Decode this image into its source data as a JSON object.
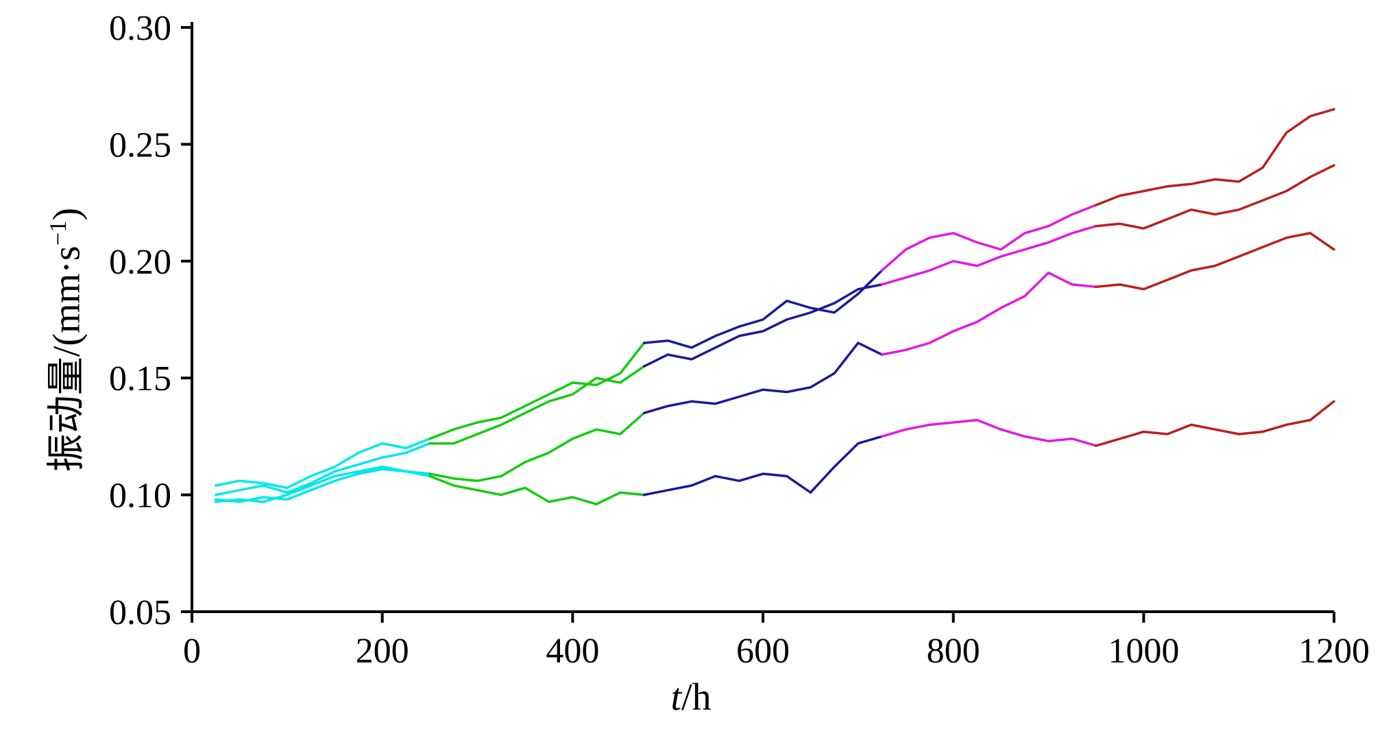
{
  "labels": {
    "ylabel_main": "振动量/(mm·s",
    "ylabel_sup": "−1",
    "ylabel_close": ")",
    "xlabel_var": "t",
    "xlabel_rest": "/h"
  },
  "chart_data": {
    "type": "line",
    "title": "",
    "xlabel": "t/h",
    "ylabel": "振动量/(mm·s⁻¹)",
    "xlim": [
      0,
      1200
    ],
    "ylim": [
      0.05,
      0.3
    ],
    "xticks": [
      0,
      200,
      400,
      600,
      800,
      1000,
      1200
    ],
    "yticks": [
      0.05,
      0.1,
      0.15,
      0.2,
      0.25,
      0.3
    ],
    "grid": false,
    "legend": "none",
    "axis_color": "#000000",
    "color_segments": [
      {
        "name": "cyan-stage",
        "t_max": 250,
        "color": "#00E8E8"
      },
      {
        "name": "green-stage",
        "t_max": 480,
        "color": "#12CC12"
      },
      {
        "name": "blue-stage",
        "t_max": 720,
        "color": "#1A1A99"
      },
      {
        "name": "magenta-stage",
        "t_max": 950,
        "color": "#E318E3"
      },
      {
        "name": "red-stage",
        "t_max": 1200,
        "color": "#BC1E1E"
      }
    ],
    "x": [
      25,
      50,
      75,
      100,
      125,
      150,
      175,
      200,
      225,
      250,
      275,
      300,
      325,
      350,
      375,
      400,
      425,
      450,
      475,
      500,
      525,
      550,
      575,
      600,
      625,
      650,
      675,
      700,
      725,
      750,
      775,
      800,
      825,
      850,
      875,
      900,
      925,
      950,
      975,
      1000,
      1025,
      1050,
      1075,
      1100,
      1125,
      1150,
      1175,
      1200
    ],
    "series": [
      {
        "name": "trajectory-1",
        "values": [
          0.104,
          0.106,
          0.105,
          0.103,
          0.108,
          0.112,
          0.118,
          0.122,
          0.12,
          0.124,
          0.128,
          0.131,
          0.133,
          0.138,
          0.143,
          0.148,
          0.147,
          0.152,
          0.165,
          0.166,
          0.163,
          0.168,
          0.172,
          0.175,
          0.183,
          0.18,
          0.178,
          0.186,
          0.196,
          0.205,
          0.21,
          0.212,
          0.208,
          0.205,
          0.212,
          0.215,
          0.22,
          0.224,
          0.228,
          0.23,
          0.232,
          0.233,
          0.235,
          0.234,
          0.24,
          0.255,
          0.262,
          0.265
        ]
      },
      {
        "name": "trajectory-2",
        "values": [
          0.1,
          0.102,
          0.104,
          0.101,
          0.105,
          0.11,
          0.113,
          0.116,
          0.118,
          0.122,
          0.122,
          0.126,
          0.13,
          0.135,
          0.14,
          0.143,
          0.15,
          0.148,
          0.155,
          0.16,
          0.158,
          0.163,
          0.168,
          0.17,
          0.175,
          0.178,
          0.182,
          0.188,
          0.19,
          0.193,
          0.196,
          0.2,
          0.198,
          0.202,
          0.205,
          0.208,
          0.212,
          0.215,
          0.216,
          0.214,
          0.218,
          0.222,
          0.22,
          0.222,
          0.226,
          0.23,
          0.236,
          0.241
        ]
      },
      {
        "name": "trajectory-3",
        "values": [
          0.097,
          0.098,
          0.097,
          0.1,
          0.104,
          0.108,
          0.11,
          0.112,
          0.11,
          0.109,
          0.107,
          0.106,
          0.108,
          0.114,
          0.118,
          0.124,
          0.128,
          0.126,
          0.135,
          0.138,
          0.14,
          0.139,
          0.142,
          0.145,
          0.144,
          0.146,
          0.152,
          0.165,
          0.16,
          0.162,
          0.165,
          0.17,
          0.174,
          0.18,
          0.185,
          0.195,
          0.19,
          0.189,
          0.19,
          0.188,
          0.192,
          0.196,
          0.198,
          0.202,
          0.206,
          0.21,
          0.212,
          0.205
        ]
      },
      {
        "name": "trajectory-4",
        "values": [
          0.098,
          0.097,
          0.099,
          0.098,
          0.102,
          0.106,
          0.109,
          0.111,
          0.11,
          0.108,
          0.104,
          0.102,
          0.1,
          0.103,
          0.097,
          0.099,
          0.096,
          0.101,
          0.1,
          0.102,
          0.104,
          0.108,
          0.106,
          0.109,
          0.108,
          0.101,
          0.112,
          0.122,
          0.125,
          0.128,
          0.13,
          0.131,
          0.132,
          0.128,
          0.125,
          0.123,
          0.124,
          0.121,
          0.124,
          0.127,
          0.126,
          0.13,
          0.128,
          0.126,
          0.127,
          0.13,
          0.132,
          0.14
        ]
      }
    ]
  }
}
